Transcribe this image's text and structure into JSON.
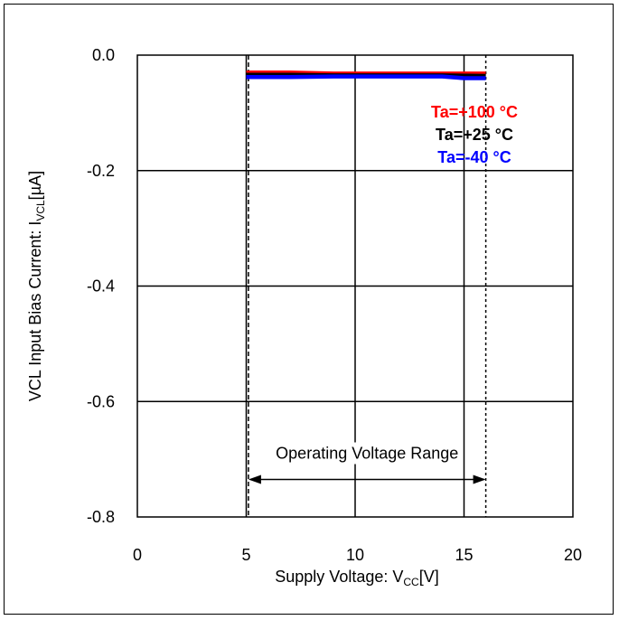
{
  "chart_data": {
    "type": "line",
    "title": "",
    "xlabel": {
      "main": "Supply Voltage: V",
      "sub": "CC",
      "unit": "[V]"
    },
    "ylabel": {
      "main": "VCL Input Bias Current: I",
      "sub": "VCL",
      "unit": "[µA]"
    },
    "xlim": [
      0,
      20
    ],
    "ylim": [
      -0.8,
      0.0
    ],
    "x_ticks": [
      0,
      5,
      10,
      15,
      20
    ],
    "x_tick_labels": [
      "0",
      "5",
      "10",
      "15",
      "20"
    ],
    "y_ticks": [
      0.0,
      -0.2,
      -0.4,
      -0.6,
      -0.8
    ],
    "y_tick_labels": [
      "0.0",
      "-0.2",
      "-0.4",
      "-0.6",
      "-0.8"
    ],
    "grid": true,
    "legend_placement": "inside right, near top",
    "series": [
      {
        "name": "Ta=+100 °C",
        "color": "#ff0000",
        "x": [
          5,
          7,
          9,
          12,
          14,
          16
        ],
        "y": [
          -0.03,
          -0.03,
          -0.032,
          -0.032,
          -0.032,
          -0.032
        ]
      },
      {
        "name": "Ta=+25 °C",
        "color": "#000000",
        "x": [
          5,
          7,
          9,
          12,
          14,
          16
        ],
        "y": [
          -0.034,
          -0.034,
          -0.035,
          -0.035,
          -0.035,
          -0.036
        ]
      },
      {
        "name": "Ta=-40 °C",
        "color": "#0000ff",
        "x": [
          5,
          7,
          9,
          12,
          14,
          15,
          16
        ],
        "y": [
          -0.038,
          -0.038,
          -0.037,
          -0.037,
          -0.037,
          -0.04,
          -0.04
        ]
      }
    ],
    "reference_lines": [
      {
        "x": 5.1,
        "style": "dashed"
      },
      {
        "x": 16,
        "style": "dotted"
      }
    ],
    "annotation": {
      "text": "Operating Voltage Range",
      "arrow_from_x": 5.1,
      "arrow_to_x": 16,
      "arrow_y": -0.735
    }
  }
}
